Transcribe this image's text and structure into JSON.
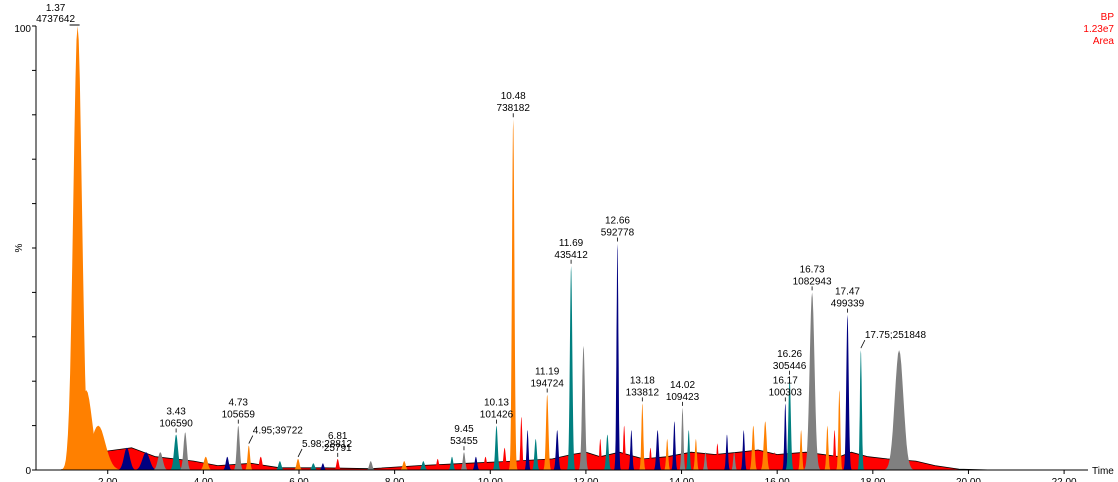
{
  "chart_data": {
    "type": "area",
    "title": "",
    "xlabel": "Time",
    "ylabel": "%",
    "xlim": [
      0.5,
      22.5
    ],
    "ylim": [
      0,
      100
    ],
    "y_ticks": [
      "0",
      "100"
    ],
    "x_tick_labels": [
      "2.00",
      "4.00",
      "6.00",
      "8.00",
      "10.00",
      "12.00",
      "14.00",
      "16.00",
      "18.00",
      "20.00",
      "22.00"
    ],
    "x_tick_values": [
      2,
      4,
      6,
      8,
      10,
      12,
      14,
      16,
      18,
      20,
      22
    ],
    "top_right": {
      "line1": "BP",
      "line2": "1.23e7",
      "line3": "Area"
    },
    "peak_colors": [
      "#ff8000",
      "#000080",
      "#008080",
      "#808080"
    ],
    "baseline_color": "#ff0000",
    "peaks": [
      {
        "rt": 1.37,
        "height": 100,
        "width": 0.18,
        "color": "#ff8000",
        "label": "1.37",
        "area": "4737642",
        "kind": "main"
      },
      {
        "rt": 1.55,
        "height": 18,
        "width": 0.25,
        "color": "#ff8000",
        "label": "",
        "area": ""
      },
      {
        "rt": 1.8,
        "height": 10,
        "width": 0.3,
        "color": "#ff8000",
        "label": "",
        "area": ""
      },
      {
        "rt": 2.4,
        "height": 5,
        "width": 0.12,
        "color": "#000080",
        "label": "",
        "area": ""
      },
      {
        "rt": 2.8,
        "height": 4,
        "width": 0.15,
        "color": "#000080",
        "label": "",
        "area": ""
      },
      {
        "rt": 3.1,
        "height": 4,
        "width": 0.1,
        "color": "#808080",
        "label": "",
        "area": ""
      },
      {
        "rt": 3.43,
        "height": 8,
        "width": 0.08,
        "color": "#008080",
        "label": "3.43",
        "area": "106590"
      },
      {
        "rt": 3.62,
        "height": 8.5,
        "width": 0.07,
        "color": "#808080",
        "label": "",
        "area": ""
      },
      {
        "rt": 4.05,
        "height": 3,
        "width": 0.08,
        "color": "#ff8000",
        "label": "",
        "area": ""
      },
      {
        "rt": 4.5,
        "height": 3,
        "width": 0.06,
        "color": "#000080",
        "label": "",
        "area": ""
      },
      {
        "rt": 4.73,
        "height": 10,
        "width": 0.06,
        "color": "#808080",
        "label": "4.73",
        "area": "105659"
      },
      {
        "rt": 4.95,
        "height": 5.5,
        "width": 0.05,
        "color": "#ff8000",
        "label": "4.95;39722",
        "area": "",
        "kind": "inline"
      },
      {
        "rt": 5.2,
        "height": 3,
        "width": 0.06,
        "color": "#ff0000",
        "label": "",
        "area": ""
      },
      {
        "rt": 5.6,
        "height": 2,
        "width": 0.06,
        "color": "#008080",
        "label": "",
        "area": ""
      },
      {
        "rt": 5.98,
        "height": 2.5,
        "width": 0.06,
        "color": "#ff8000",
        "label": "5.98;28812",
        "area": "",
        "kind": "inline"
      },
      {
        "rt": 6.3,
        "height": 1.5,
        "width": 0.06,
        "color": "#008080",
        "label": "",
        "area": ""
      },
      {
        "rt": 6.5,
        "height": 1.5,
        "width": 0.05,
        "color": "#000080",
        "label": "",
        "area": ""
      },
      {
        "rt": 6.81,
        "height": 2.5,
        "width": 0.05,
        "color": "#ff0000",
        "label": "6.81",
        "area": "25791"
      },
      {
        "rt": 7.5,
        "height": 2,
        "width": 0.06,
        "color": "#808080",
        "label": "",
        "area": ""
      },
      {
        "rt": 8.2,
        "height": 2,
        "width": 0.06,
        "color": "#ff8000",
        "label": "",
        "area": ""
      },
      {
        "rt": 8.6,
        "height": 2,
        "width": 0.06,
        "color": "#008080",
        "label": "",
        "area": ""
      },
      {
        "rt": 8.9,
        "height": 2.5,
        "width": 0.05,
        "color": "#ff0000",
        "label": "",
        "area": ""
      },
      {
        "rt": 9.2,
        "height": 3,
        "width": 0.05,
        "color": "#008080",
        "label": "",
        "area": ""
      },
      {
        "rt": 9.45,
        "height": 4,
        "width": 0.05,
        "color": "#808080",
        "label": "9.45",
        "area": "53455"
      },
      {
        "rt": 9.7,
        "height": 3,
        "width": 0.05,
        "color": "#000080",
        "label": "",
        "area": ""
      },
      {
        "rt": 9.9,
        "height": 3,
        "width": 0.05,
        "color": "#ff0000",
        "label": "",
        "area": ""
      },
      {
        "rt": 10.13,
        "height": 10,
        "width": 0.05,
        "color": "#008080",
        "label": "10.13",
        "area": "101426"
      },
      {
        "rt": 10.3,
        "height": 5,
        "width": 0.05,
        "color": "#ff0000",
        "label": "",
        "area": ""
      },
      {
        "rt": 10.48,
        "height": 79,
        "width": 0.05,
        "color": "#ff8000",
        "label": "10.48",
        "area": "738182"
      },
      {
        "rt": 10.65,
        "height": 12,
        "width": 0.04,
        "color": "#ff0000",
        "label": "",
        "area": ""
      },
      {
        "rt": 10.78,
        "height": 9,
        "width": 0.04,
        "color": "#000080",
        "label": "",
        "area": ""
      },
      {
        "rt": 10.95,
        "height": 7,
        "width": 0.05,
        "color": "#008080",
        "label": "",
        "area": ""
      },
      {
        "rt": 11.19,
        "height": 17,
        "width": 0.05,
        "color": "#ff8000",
        "label": "11.19",
        "area": "194724"
      },
      {
        "rt": 11.4,
        "height": 9,
        "width": 0.05,
        "color": "#000080",
        "label": "",
        "area": ""
      },
      {
        "rt": 11.69,
        "height": 46,
        "width": 0.05,
        "color": "#008080",
        "label": "11.69",
        "area": "435412"
      },
      {
        "rt": 11.95,
        "height": 28,
        "width": 0.06,
        "color": "#808080",
        "label": "",
        "area": ""
      },
      {
        "rt": 12.3,
        "height": 7,
        "width": 0.04,
        "color": "#ff0000",
        "label": "",
        "area": ""
      },
      {
        "rt": 12.45,
        "height": 8,
        "width": 0.05,
        "color": "#008080",
        "label": "",
        "area": ""
      },
      {
        "rt": 12.66,
        "height": 51,
        "width": 0.04,
        "color": "#000080",
        "label": "12.66",
        "area": "592778"
      },
      {
        "rt": 12.8,
        "height": 10,
        "width": 0.04,
        "color": "#ff0000",
        "label": "",
        "area": ""
      },
      {
        "rt": 12.95,
        "height": 9,
        "width": 0.04,
        "color": "#000080",
        "label": "",
        "area": ""
      },
      {
        "rt": 13.18,
        "height": 15,
        "width": 0.04,
        "color": "#ff8000",
        "label": "13.18",
        "area": "133812"
      },
      {
        "rt": 13.35,
        "height": 5,
        "width": 0.04,
        "color": "#ff0000",
        "label": "",
        "area": ""
      },
      {
        "rt": 13.5,
        "height": 9,
        "width": 0.05,
        "color": "#000080",
        "label": "",
        "area": ""
      },
      {
        "rt": 13.7,
        "height": 7,
        "width": 0.04,
        "color": "#ff8000",
        "label": "",
        "area": ""
      },
      {
        "rt": 13.85,
        "height": 11,
        "width": 0.04,
        "color": "#000080",
        "label": "",
        "area": ""
      },
      {
        "rt": 14.02,
        "height": 14,
        "width": 0.04,
        "color": "#808080",
        "label": "14.02",
        "area": "109423"
      },
      {
        "rt": 14.15,
        "height": 9,
        "width": 0.04,
        "color": "#008080",
        "label": "",
        "area": ""
      },
      {
        "rt": 14.3,
        "height": 7,
        "width": 0.04,
        "color": "#ff8000",
        "label": "",
        "area": ""
      },
      {
        "rt": 14.5,
        "height": 4,
        "width": 0.04,
        "color": "#808080",
        "label": "",
        "area": ""
      },
      {
        "rt": 14.75,
        "height": 6,
        "width": 0.04,
        "color": "#ff0000",
        "label": "",
        "area": ""
      },
      {
        "rt": 14.95,
        "height": 8,
        "width": 0.04,
        "color": "#000080",
        "label": "",
        "area": ""
      },
      {
        "rt": 15.1,
        "height": 4,
        "width": 0.04,
        "color": "#808080",
        "label": "",
        "area": ""
      },
      {
        "rt": 15.3,
        "height": 9,
        "width": 0.04,
        "color": "#000080",
        "label": "",
        "area": ""
      },
      {
        "rt": 15.5,
        "height": 10,
        "width": 0.05,
        "color": "#ff8000",
        "label": "",
        "area": ""
      },
      {
        "rt": 15.75,
        "height": 11,
        "width": 0.06,
        "color": "#ff8000",
        "label": "",
        "area": ""
      },
      {
        "rt": 15.95,
        "height": 4,
        "width": 0.04,
        "color": "#ff0000",
        "label": "",
        "area": ""
      },
      {
        "rt": 16.17,
        "height": 15,
        "width": 0.04,
        "color": "#000080",
        "label": "16.17",
        "area": "100303"
      },
      {
        "rt": 16.26,
        "height": 21,
        "width": 0.05,
        "color": "#008080",
        "label": "16.26",
        "area": "305446"
      },
      {
        "rt": 16.5,
        "height": 9,
        "width": 0.04,
        "color": "#ff8000",
        "label": "",
        "area": ""
      },
      {
        "rt": 16.73,
        "height": 40,
        "width": 0.1,
        "color": "#808080",
        "label": "16.73",
        "area": "1082943"
      },
      {
        "rt": 17.05,
        "height": 10,
        "width": 0.04,
        "color": "#ff8000",
        "label": "",
        "area": ""
      },
      {
        "rt": 17.2,
        "height": 9,
        "width": 0.04,
        "color": "#ff0000",
        "label": "",
        "area": ""
      },
      {
        "rt": 17.3,
        "height": 18,
        "width": 0.04,
        "color": "#ff8000",
        "label": "",
        "area": ""
      },
      {
        "rt": 17.47,
        "height": 35,
        "width": 0.05,
        "color": "#000080",
        "label": "17.47",
        "area": "499339"
      },
      {
        "rt": 17.75,
        "height": 27,
        "width": 0.04,
        "color": "#008080",
        "label": "17.75;251848",
        "area": "",
        "kind": "inline"
      },
      {
        "rt": 18.55,
        "height": 27,
        "width": 0.18,
        "color": "#808080",
        "label": "",
        "area": ""
      }
    ],
    "baseline": [
      [
        0.5,
        0
      ],
      [
        1.0,
        0
      ],
      [
        1.25,
        0.5
      ],
      [
        1.8,
        4
      ],
      [
        2.5,
        5
      ],
      [
        3.0,
        3
      ],
      [
        3.8,
        2
      ],
      [
        4.3,
        1
      ],
      [
        5.0,
        1.5
      ],
      [
        5.6,
        0.5
      ],
      [
        6.5,
        0.5
      ],
      [
        7.5,
        0.3
      ],
      [
        8.5,
        1
      ],
      [
        9.5,
        1.5
      ],
      [
        10.5,
        2
      ],
      [
        11.3,
        2.5
      ],
      [
        11.7,
        3.5
      ],
      [
        12.0,
        4
      ],
      [
        12.3,
        3
      ],
      [
        12.7,
        4
      ],
      [
        13.2,
        2.5
      ],
      [
        13.7,
        3
      ],
      [
        14.2,
        4
      ],
      [
        14.7,
        3.5
      ],
      [
        15.2,
        4
      ],
      [
        15.6,
        4.5
      ],
      [
        16.0,
        3.5
      ],
      [
        16.6,
        4
      ],
      [
        17.3,
        3
      ],
      [
        17.55,
        4
      ],
      [
        17.9,
        3
      ],
      [
        18.3,
        2.5
      ],
      [
        18.9,
        2
      ],
      [
        19.3,
        1
      ],
      [
        19.8,
        0.2
      ],
      [
        20.5,
        0
      ],
      [
        22.5,
        0
      ]
    ]
  }
}
